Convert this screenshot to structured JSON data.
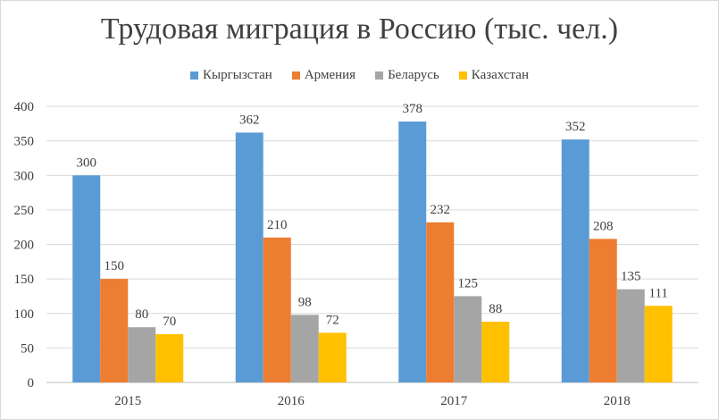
{
  "chart_data": {
    "type": "bar",
    "title": "Трудовая миграция в Россию (тыс. чел.)",
    "categories": [
      "2015",
      "2016",
      "2017",
      "2018"
    ],
    "series": [
      {
        "name": "Кыргызстан",
        "color": "#5b9bd5",
        "values": [
          300,
          362,
          378,
          352
        ]
      },
      {
        "name": "Армения",
        "color": "#ed7d31",
        "values": [
          150,
          210,
          232,
          208
        ]
      },
      {
        "name": "Беларусь",
        "color": "#a5a5a5",
        "values": [
          80,
          98,
          125,
          135
        ]
      },
      {
        "name": "Казахстан",
        "color": "#ffc000",
        "values": [
          70,
          72,
          88,
          111
        ]
      }
    ],
    "ylim": [
      0,
      400
    ],
    "yticks": [
      0,
      50,
      100,
      150,
      200,
      250,
      300,
      350,
      400
    ],
    "grid": true,
    "legend_position": "top"
  }
}
